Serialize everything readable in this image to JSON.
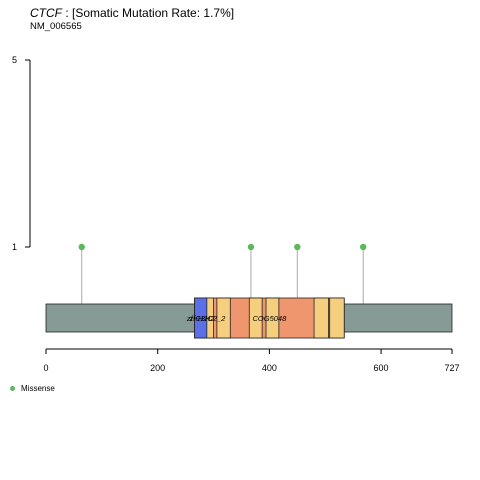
{
  "header": {
    "gene": "CTCF",
    "rate_text": " : [Somatic Mutation Rate: 1.7%]",
    "transcript": "NM_006565"
  },
  "chart_data": {
    "type": "lollipop",
    "protein_length": 727,
    "x_ticks": [
      0,
      200,
      400,
      600,
      727
    ],
    "x_tick_labels": [
      "0",
      "200",
      "400",
      "600",
      "727"
    ],
    "y_ticks": [
      1,
      5
    ],
    "y_tick_labels": [
      "1",
      "5"
    ],
    "ylim": [
      0,
      5
    ],
    "backbone_color": "#869a96",
    "mutations": [
      {
        "position": 64,
        "count": 1,
        "type": "Missense"
      },
      {
        "position": 367,
        "count": 1,
        "type": "Missense"
      },
      {
        "position": 450,
        "count": 1,
        "type": "Missense"
      },
      {
        "position": 568,
        "count": 1,
        "type": "Missense"
      }
    ],
    "domains": [
      {
        "name": "COG5048",
        "start": 266,
        "end": 534,
        "color": "#f0966e",
        "show_label": true
      },
      {
        "name": "zf-H2C2_2",
        "start": 278,
        "end": 300,
        "color": "#f6cf7e",
        "show_label": true
      },
      {
        "name": "zf-H2C2_2",
        "start": 306,
        "end": 330,
        "color": "#f6cf7e",
        "show_label": false
      },
      {
        "name": "zf-H2C2_2",
        "start": 364,
        "end": 387,
        "color": "#f6cf7e",
        "show_label": false
      },
      {
        "name": "zf-H2C2_2",
        "start": 394,
        "end": 417,
        "color": "#f6cf7e",
        "show_label": false
      },
      {
        "name": "zf-H2C2_2",
        "start": 480,
        "end": 506,
        "color": "#f6cf7e",
        "show_label": false
      },
      {
        "name": "zf-H2C2_2",
        "start": 508,
        "end": 534,
        "color": "#f6cf7e",
        "show_label": false
      },
      {
        "name": "zf-C2H2",
        "start": 266,
        "end": 288,
        "color": "#5b6fe6",
        "show_label": true
      }
    ],
    "legend": [
      {
        "label": "Missense",
        "color": "#5cb85c"
      }
    ]
  }
}
